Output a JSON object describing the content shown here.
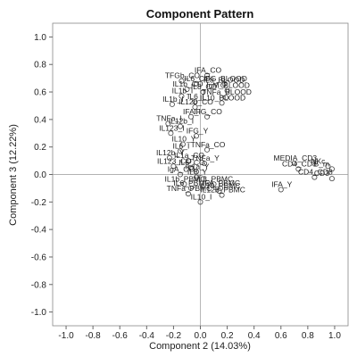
{
  "chart_data": {
    "type": "scatter",
    "title": "Component Pattern",
    "xlabel": "Component 2 (14.03%)",
    "ylabel": "Component 3 (12.22%)",
    "xlim": [
      -1.1,
      1.1
    ],
    "ylim": [
      -1.1,
      1.1
    ],
    "xticks": [
      "-1.0",
      "-0.8",
      "-0.6",
      "-0.4",
      "-0.2",
      "0.0",
      "0.2",
      "0.4",
      "0.6",
      "0.8",
      "1.0"
    ],
    "yticks": [
      "-1.0",
      "-0.8",
      "-0.6",
      "-0.4",
      "-0.2",
      "0.0",
      "0.2",
      "0.4",
      "0.6",
      "0.8",
      "1.0"
    ],
    "grid": false,
    "reference_lines": [
      0,
      0
    ],
    "points": [
      {
        "label": "IFA_CO",
        "x": 0.05,
        "y": 0.72
      },
      {
        "label": "TFGb_CO",
        "x": -0.14,
        "y": 0.68
      },
      {
        "label": "IL1b_CO",
        "x": -0.1,
        "y": 0.62
      },
      {
        "label": "IL6_CO",
        "x": -0.03,
        "y": 0.66
      },
      {
        "label": "IL8_CO",
        "x": 0.02,
        "y": 0.6
      },
      {
        "label": "IFG_BLOOD",
        "x": 0.18,
        "y": 0.66
      },
      {
        "label": "IL8_BLOOD",
        "x": 0.17,
        "y": 0.65
      },
      {
        "label": "IgM_BLOOD",
        "x": 0.2,
        "y": 0.61
      },
      {
        "label": "TNFa_BLOOD",
        "x": 0.19,
        "y": 0.56
      },
      {
        "label": "IL10_BLOOD",
        "x": 0.16,
        "y": 0.52
      },
      {
        "label": "IL1b_I",
        "x": -0.14,
        "y": 0.57
      },
      {
        "label": "IL6_I",
        "x": -0.04,
        "y": 0.53
      },
      {
        "label": "IL1b_I",
        "x": -0.21,
        "y": 0.51
      },
      {
        "label": "IL12b_CO",
        "x": -0.04,
        "y": 0.49
      },
      {
        "label": "IFA_I",
        "x": -0.07,
        "y": 0.42
      },
      {
        "label": "IFG_CO",
        "x": 0.05,
        "y": 0.42
      },
      {
        "label": "TNFa_I",
        "x": -0.24,
        "y": 0.37
      },
      {
        "label": "IL12b_I",
        "x": -0.15,
        "y": 0.35
      },
      {
        "label": "IL123_I",
        "x": -0.22,
        "y": 0.3
      },
      {
        "label": "IFG_Y",
        "x": -0.03,
        "y": 0.28
      },
      {
        "label": "IL10_Y",
        "x": -0.13,
        "y": 0.22
      },
      {
        "label": "TNFa_CO",
        "x": 0.05,
        "y": 0.18
      },
      {
        "label": "IL6_I",
        "x": -0.15,
        "y": 0.17
      },
      {
        "label": "IL12b_Y",
        "x": -0.23,
        "y": 0.12
      },
      {
        "label": "IL1a_CO",
        "x": -0.09,
        "y": 0.1
      },
      {
        "label": "TNFa_Y",
        "x": 0.03,
        "y": 0.08
      },
      {
        "label": "IL123_CO",
        "x": -0.2,
        "y": 0.06
      },
      {
        "label": "IL6_CO",
        "x": -0.07,
        "y": 0.05
      },
      {
        "label": "IL1a_Y",
        "x": -0.03,
        "y": 0.02
      },
      {
        "label": "IgA_CO",
        "x": -0.15,
        "y": 0.0
      },
      {
        "label": "IL8_Y",
        "x": -0.03,
        "y": -0.02
      },
      {
        "label": "IL1b_PBMC",
        "x": -0.12,
        "y": -0.07
      },
      {
        "label": "IL6_PBMC",
        "x": -0.07,
        "y": -0.1
      },
      {
        "label": "IL8_PBMC",
        "x": 0.1,
        "y": -0.07
      },
      {
        "label": "IFA_PBMC",
        "x": 0.15,
        "y": -0.1
      },
      {
        "label": "IL10_PBMC",
        "x": 0.14,
        "y": -0.12
      },
      {
        "label": "TNFa_PBMC",
        "x": -0.09,
        "y": -0.14
      },
      {
        "label": "IL12b_PBMC",
        "x": 0.16,
        "y": -0.15
      },
      {
        "label": "IL10_I",
        "x": 0.0,
        "y": -0.2
      },
      {
        "label": "MEDIA_CD3",
        "x": 0.7,
        "y": 0.08
      },
      {
        "label": "CD4_CD8",
        "x": 0.73,
        "y": 0.04
      },
      {
        "label": "NKc",
        "x": 0.95,
        "y": 0.06
      },
      {
        "label": "B_m",
        "x": 0.98,
        "y": 0.04
      },
      {
        "label": "CD4_CD8",
        "x": 0.85,
        "y": -0.02
      },
      {
        "label": "CD3",
        "x": 0.98,
        "y": -0.03
      },
      {
        "label": "IFA_Y",
        "x": 0.6,
        "y": -0.11
      }
    ]
  }
}
